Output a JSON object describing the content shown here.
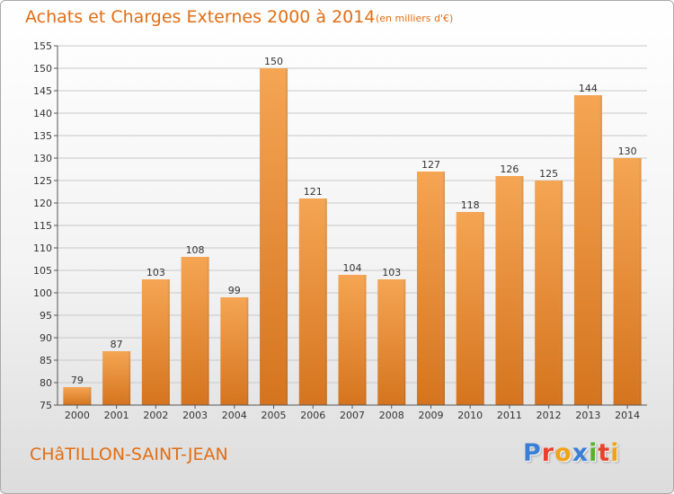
{
  "header": {
    "title": "Achats et Charges Externes 2000 à 2014",
    "subtitle": "(en milliers d'€)"
  },
  "footer": {
    "commune": "CHâTILLON-SAINT-JEAN",
    "brand_letters": [
      "P",
      "r",
      "o",
      "x",
      "i",
      "t",
      "i"
    ],
    "brand_colors": [
      "#3a7fd5",
      "#e8412c",
      "#f0a319",
      "#3a7fd5",
      "#58b030",
      "#e8412c",
      "#f0a319"
    ]
  },
  "colors": {
    "accent": "#e06e14",
    "bar_top": "#f5a553",
    "bar_bottom": "#d5741f",
    "grid": "#c8c8c8"
  },
  "chart_data": {
    "type": "bar",
    "categories": [
      "2000",
      "2001",
      "2002",
      "2003",
      "2004",
      "2005",
      "2006",
      "2007",
      "2008",
      "2009",
      "2010",
      "2011",
      "2012",
      "2013",
      "2014"
    ],
    "values": [
      79,
      87,
      103,
      108,
      99,
      150,
      121,
      104,
      103,
      127,
      118,
      126,
      125,
      144,
      130
    ],
    "ylim": [
      75,
      155
    ],
    "yticks": [
      75,
      80,
      85,
      90,
      95,
      100,
      105,
      110,
      115,
      120,
      125,
      130,
      135,
      140,
      145,
      150,
      155
    ],
    "grid": true,
    "title": "Achats et Charges Externes 2000 à 2014",
    "xlabel": "",
    "ylabel": ""
  }
}
